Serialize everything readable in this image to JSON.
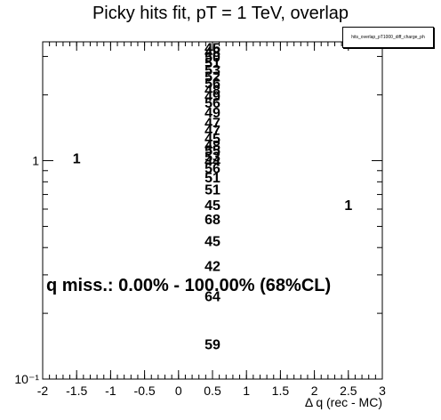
{
  "chart_data": {
    "type": "text_histogram",
    "title": "Picky hits fit, pT = 1 TeV, overlap",
    "stats_box_label": "hits_overlap_pT1000_diff_charge_ph",
    "xlabel": "Δ q (rec - MC)",
    "ylabel": "",
    "xlim": [
      -2,
      3
    ],
    "ylim": [
      0.1,
      3.5
    ],
    "yscale": "log",
    "x_ticks": [
      -2,
      -1.5,
      -1,
      -0.5,
      0,
      0.5,
      1,
      1.5,
      2,
      2.5,
      3
    ],
    "x_tick_labels": [
      "-2",
      "-1.5",
      "-1",
      "-0.5",
      "0",
      "0.5",
      "1",
      "1.5",
      "2",
      "2.5",
      "3"
    ],
    "y_tick_labels": [
      {
        "value": 1,
        "label": "1"
      },
      {
        "value": 0.1,
        "label": "10⁻¹"
      }
    ],
    "cell_labels": [
      {
        "x": -1.5,
        "y": 1.03,
        "text": "1"
      },
      {
        "x": 2.5,
        "y": 0.63,
        "text": "1"
      },
      {
        "x": 0.5,
        "y": 3.29,
        "text": "45"
      },
      {
        "x": 0.5,
        "y": 3.15,
        "text": "48"
      },
      {
        "x": 0.5,
        "y": 3.0,
        "text": "50"
      },
      {
        "x": 0.5,
        "y": 2.82,
        "text": "51"
      },
      {
        "x": 0.5,
        "y": 2.62,
        "text": "53"
      },
      {
        "x": 0.5,
        "y": 2.44,
        "text": "52"
      },
      {
        "x": 0.5,
        "y": 2.27,
        "text": "56"
      },
      {
        "x": 0.5,
        "y": 2.12,
        "text": "48"
      },
      {
        "x": 0.5,
        "y": 1.98,
        "text": "49"
      },
      {
        "x": 0.5,
        "y": 1.85,
        "text": "56"
      },
      {
        "x": 0.5,
        "y": 1.67,
        "text": "49"
      },
      {
        "x": 0.5,
        "y": 1.5,
        "text": "47"
      },
      {
        "x": 0.5,
        "y": 1.38,
        "text": "47"
      },
      {
        "x": 0.5,
        "y": 1.27,
        "text": "45"
      },
      {
        "x": 0.5,
        "y": 1.18,
        "text": "48"
      },
      {
        "x": 0.5,
        "y": 1.12,
        "text": "55"
      },
      {
        "x": 0.5,
        "y": 1.05,
        "text": "53"
      },
      {
        "x": 0.5,
        "y": 1.0,
        "text": "44"
      },
      {
        "x": 0.5,
        "y": 0.93,
        "text": "56"
      },
      {
        "x": 0.5,
        "y": 0.84,
        "text": "51"
      },
      {
        "x": 0.5,
        "y": 0.74,
        "text": "51"
      },
      {
        "x": 0.5,
        "y": 0.63,
        "text": "45"
      },
      {
        "x": 0.5,
        "y": 0.54,
        "text": "68"
      },
      {
        "x": 0.5,
        "y": 0.43,
        "text": "45"
      },
      {
        "x": 0.5,
        "y": 0.33,
        "text": "42"
      },
      {
        "x": 0.5,
        "y": 0.24,
        "text": "64"
      },
      {
        "x": 0.5,
        "y": 0.145,
        "text": "59"
      }
    ],
    "annotation": "q miss.: 0.00% - 100.00% (68%CL)",
    "grid": false,
    "legend": "none"
  }
}
